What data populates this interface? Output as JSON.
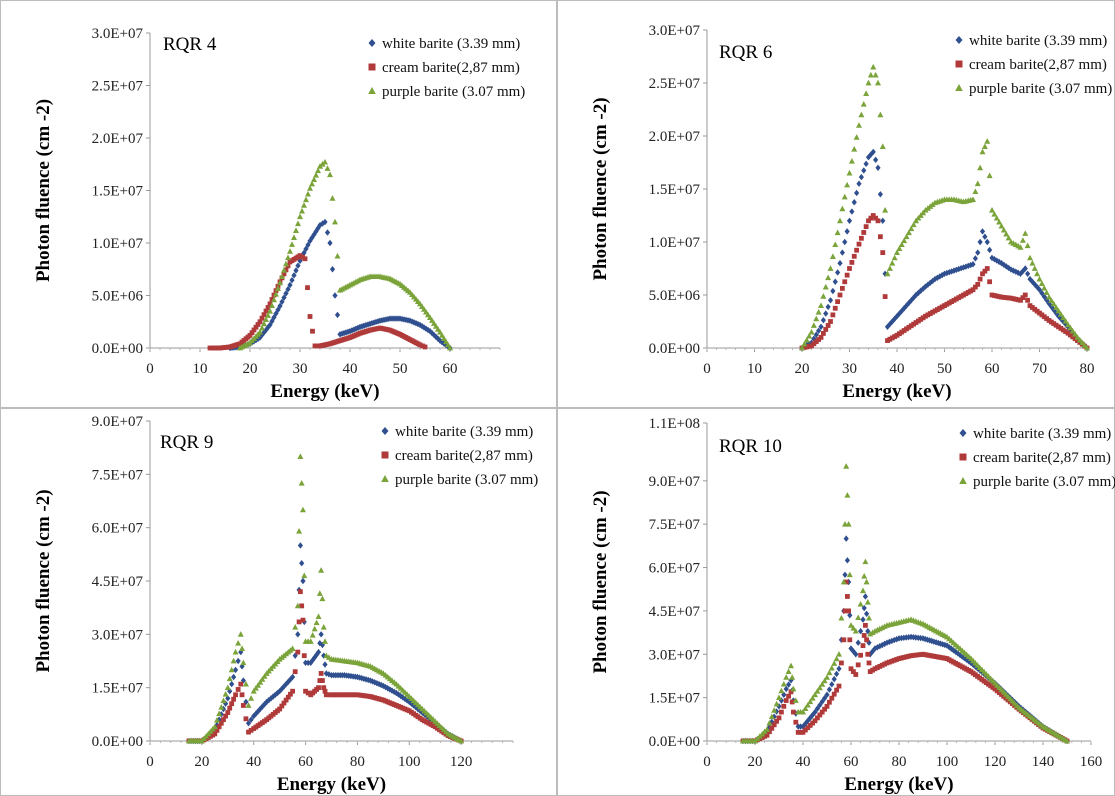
{
  "chart_data": [
    {
      "type": "scatter",
      "label": "RQR 4",
      "xlabel": "Energy (keV)",
      "ylabel": "Photon fluence (cm -2)",
      "xlim": [
        0,
        70
      ],
      "ylim": [
        0,
        30000000
      ],
      "xticks": [
        0,
        10,
        20,
        30,
        40,
        50,
        60
      ],
      "xtick_labels": [
        "0",
        "10",
        "20",
        "30",
        "40",
        "50",
        "60"
      ],
      "yticks": [
        0,
        5000000,
        10000000,
        15000000,
        20000000,
        25000000,
        30000000
      ],
      "ytick_labels": [
        "0.0E+00",
        "5.0E+06",
        "1.0E+07",
        "1.5E+07",
        "2.0E+07",
        "2.5E+07",
        "3.0E+07"
      ],
      "legend_position": "top-right",
      "series": [
        {
          "name": "white barite (3.39 mm)",
          "color": "#2f4f8f",
          "marker": "diamond",
          "x": [
            16,
            18,
            20,
            22,
            24,
            26,
            28,
            30,
            32,
            34,
            35,
            36,
            37,
            38,
            40,
            42,
            44,
            46,
            48,
            50,
            52,
            54,
            56,
            58,
            60
          ],
          "y": [
            0,
            100000,
            400000,
            1000000,
            2200000,
            4000000,
            6000000,
            8300000,
            10200000,
            11700000,
            12000000,
            10000000,
            5000000,
            1300000,
            1600000,
            2000000,
            2300000,
            2600000,
            2800000,
            2800000,
            2600000,
            2200000,
            1600000,
            700000,
            0
          ]
        },
        {
          "name": "cream barite(2,87 mm)",
          "color": "#b03a3a",
          "marker": "square",
          "x": [
            12,
            14,
            16,
            18,
            20,
            22,
            24,
            26,
            28,
            30,
            31,
            32,
            33,
            34,
            36,
            38,
            40,
            42,
            44,
            46,
            48,
            50,
            52,
            54,
            55
          ],
          "y": [
            0,
            0,
            100000,
            400000,
            1200000,
            2500000,
            4200000,
            6300000,
            8200000,
            8800000,
            8500000,
            3000000,
            200000,
            200000,
            400000,
            700000,
            1000000,
            1400000,
            1700000,
            1900000,
            1700000,
            1300000,
            800000,
            300000,
            100000
          ]
        },
        {
          "name": "purple barite (3.07 mm)",
          "color": "#7aa33a",
          "marker": "triangle",
          "x": [
            18,
            20,
            22,
            24,
            26,
            28,
            30,
            32,
            34,
            35,
            36,
            37,
            38,
            40,
            42,
            44,
            46,
            48,
            50,
            52,
            54,
            56,
            58,
            60
          ],
          "y": [
            0,
            500000,
            1500000,
            3500000,
            6200000,
            9200000,
            12500000,
            15200000,
            17300000,
            17700000,
            16500000,
            12000000,
            5500000,
            6000000,
            6500000,
            6800000,
            6800000,
            6600000,
            6100000,
            5300000,
            4200000,
            2900000,
            1500000,
            0
          ]
        }
      ]
    },
    {
      "type": "scatter",
      "label": "RQR 6",
      "xlabel": "Energy (keV)",
      "ylabel": "Photon fluence (cm -2)",
      "xlim": [
        0,
        80
      ],
      "ylim": [
        0,
        30000000
      ],
      "xticks": [
        0,
        10,
        20,
        30,
        40,
        50,
        60,
        70,
        80
      ],
      "xtick_labels": [
        "0",
        "10",
        "20",
        "30",
        "40",
        "50",
        "60",
        "70",
        "80"
      ],
      "yticks": [
        0,
        5000000,
        10000000,
        15000000,
        20000000,
        25000000,
        30000000
      ],
      "ytick_labels": [
        "0.0E+00",
        "5.0E+06",
        "1.0E+07",
        "1.5E+07",
        "2.0E+07",
        "2.5E+07",
        "3.0E+07"
      ],
      "legend_position": "top-right",
      "series": [
        {
          "name": "white barite (3.39 mm)",
          "color": "#2f4f8f",
          "marker": "diamond",
          "x": [
            20,
            22,
            24,
            26,
            28,
            30,
            32,
            34,
            35,
            36,
            37,
            38,
            40,
            42,
            44,
            46,
            48,
            50,
            52,
            54,
            56,
            57,
            58,
            59,
            60,
            62,
            64,
            66,
            67,
            68,
            70,
            72,
            74,
            76,
            78,
            80
          ],
          "y": [
            0,
            500000,
            2000000,
            4500000,
            8000000,
            12000000,
            15500000,
            18000000,
            18500000,
            17000000,
            12000000,
            2000000,
            3000000,
            4000000,
            5000000,
            5800000,
            6500000,
            7000000,
            7300000,
            7600000,
            7900000,
            9000000,
            11000000,
            10000000,
            8500000,
            8000000,
            7400000,
            7000000,
            7500000,
            6500000,
            5500000,
            4200000,
            3000000,
            2000000,
            900000,
            0
          ]
        },
        {
          "name": "cream barite(2,87 mm)",
          "color": "#b03a3a",
          "marker": "square",
          "x": [
            20,
            22,
            24,
            26,
            28,
            30,
            32,
            34,
            35,
            36,
            37,
            38,
            40,
            42,
            44,
            46,
            48,
            50,
            52,
            54,
            56,
            57,
            58,
            59,
            60,
            62,
            64,
            66,
            67,
            68,
            70,
            72,
            74,
            76,
            78,
            80
          ],
          "y": [
            0,
            200000,
            1000000,
            2500000,
            5000000,
            7500000,
            9800000,
            12000000,
            12500000,
            12000000,
            9000000,
            700000,
            1200000,
            1800000,
            2400000,
            3000000,
            3500000,
            4000000,
            4500000,
            5000000,
            5500000,
            6000000,
            7000000,
            7500000,
            5000000,
            4800000,
            4700000,
            4500000,
            5000000,
            4000000,
            3300000,
            2600000,
            2000000,
            1400000,
            700000,
            0
          ]
        },
        {
          "name": "purple barite (3.07 mm)",
          "color": "#7aa33a",
          "marker": "triangle",
          "x": [
            20,
            22,
            24,
            26,
            28,
            30,
            32,
            34,
            35,
            36,
            37,
            38,
            40,
            42,
            44,
            46,
            48,
            50,
            52,
            54,
            56,
            57,
            58,
            59,
            60,
            62,
            64,
            66,
            67,
            68,
            70,
            72,
            74,
            76,
            78,
            80
          ],
          "y": [
            0,
            1500000,
            4000000,
            7500000,
            12000000,
            16500000,
            21000000,
            25000000,
            26500000,
            25000000,
            19000000,
            7000000,
            9000000,
            10500000,
            12000000,
            13000000,
            13700000,
            14000000,
            14000000,
            13800000,
            14000000,
            15500000,
            18500000,
            19500000,
            13000000,
            11500000,
            10000000,
            9500000,
            10800000,
            8500000,
            6500000,
            4800000,
            3500000,
            2200000,
            1000000,
            0
          ]
        }
      ]
    },
    {
      "type": "scatter",
      "label": "RQR 9",
      "xlabel": "Energy (keV)",
      "ylabel": "Photon fluence (cm -2)",
      "xlim": [
        0,
        140
      ],
      "ylim": [
        0,
        90000000
      ],
      "xticks": [
        0,
        20,
        40,
        60,
        80,
        100,
        120
      ],
      "xtick_labels": [
        "0",
        "20",
        "40",
        "60",
        "80",
        "100",
        "120"
      ],
      "yticks": [
        0,
        15000000,
        30000000,
        45000000,
        60000000,
        75000000,
        90000000
      ],
      "ytick_labels": [
        "0.0E+00",
        "1.5E+07",
        "3.0E+07",
        "4.5E+07",
        "6.0E+07",
        "7.5E+07",
        "9.0E+07"
      ],
      "legend_position": "top-right",
      "series": [
        {
          "name": "white barite (3.39 mm)",
          "color": "#2f4f8f",
          "marker": "diamond",
          "x": [
            15,
            20,
            25,
            30,
            33,
            35,
            36,
            38,
            40,
            45,
            50,
            55,
            57,
            58,
            59,
            60,
            62,
            65,
            66,
            67,
            68,
            70,
            75,
            80,
            85,
            90,
            95,
            100,
            105,
            110,
            115,
            120
          ],
          "y": [
            0,
            0,
            3000000,
            12000000,
            20000000,
            25000000,
            17000000,
            5000000,
            7000000,
            11000000,
            14000000,
            18000000,
            30000000,
            55000000,
            45000000,
            22000000,
            22000000,
            25000000,
            30000000,
            24000000,
            19000000,
            18500000,
            18500000,
            18000000,
            17000000,
            15500000,
            13500000,
            11000000,
            8000000,
            5000000,
            2000000,
            0
          ]
        },
        {
          "name": "cream barite(2,87 mm)",
          "color": "#b03a3a",
          "marker": "square",
          "x": [
            15,
            20,
            25,
            30,
            33,
            35,
            36,
            38,
            40,
            45,
            50,
            55,
            57,
            58,
            59,
            60,
            62,
            65,
            66,
            67,
            68,
            70,
            75,
            80,
            85,
            90,
            95,
            100,
            105,
            110,
            115,
            120
          ],
          "y": [
            0,
            0,
            2000000,
            8000000,
            13000000,
            16000000,
            10000000,
            2500000,
            3500000,
            6000000,
            9000000,
            14000000,
            25000000,
            42000000,
            34000000,
            14000000,
            13000000,
            15000000,
            19000000,
            15000000,
            13000000,
            13000000,
            13000000,
            13000000,
            12500000,
            11500000,
            10000000,
            8500000,
            6000000,
            4000000,
            1500000,
            0
          ]
        },
        {
          "name": "purple barite (3.07 mm)",
          "color": "#7aa33a",
          "marker": "triangle",
          "x": [
            15,
            20,
            25,
            30,
            33,
            35,
            36,
            38,
            40,
            45,
            50,
            55,
            57,
            58,
            59,
            60,
            62,
            65,
            66,
            67,
            68,
            70,
            75,
            80,
            85,
            90,
            95,
            100,
            105,
            110,
            115,
            120
          ],
          "y": [
            0,
            0,
            4000000,
            15000000,
            25000000,
            30000000,
            22000000,
            10000000,
            14000000,
            19000000,
            23000000,
            26000000,
            38000000,
            80000000,
            65000000,
            28000000,
            28000000,
            35000000,
            48000000,
            32000000,
            24000000,
            23000000,
            22500000,
            22000000,
            21000000,
            19000000,
            16000000,
            12500000,
            9000000,
            5500000,
            2000000,
            0
          ]
        }
      ]
    },
    {
      "type": "scatter",
      "label": "RQR 10",
      "xlabel": "Energy (keV)",
      "ylabel": "Photon fluence (cm -2)",
      "xlim": [
        0,
        160
      ],
      "ylim": [
        0,
        110000000
      ],
      "xticks": [
        0,
        20,
        40,
        60,
        80,
        100,
        120,
        140,
        160
      ],
      "xtick_labels": [
        "0",
        "20",
        "40",
        "60",
        "80",
        "100",
        "120",
        "140",
        "160"
      ],
      "yticks": [
        0,
        15000000,
        30000000,
        45000000,
        60000000,
        75000000,
        90000000,
        110000000
      ],
      "ytick_labels": [
        "0.0E+00",
        "1.5E+07",
        "3.0E+07",
        "4.5E+07",
        "6.0E+07",
        "7.5E+07",
        "9.0E+07",
        "1.1E+08"
      ],
      "legend_position": "top-right",
      "series": [
        {
          "name": "white barite (3.39 mm)",
          "color": "#2f4f8f",
          "marker": "diamond",
          "x": [
            15,
            20,
            25,
            30,
            33,
            35,
            36,
            38,
            40,
            45,
            50,
            55,
            57,
            58,
            59,
            60,
            62,
            65,
            66,
            67,
            68,
            70,
            75,
            80,
            85,
            90,
            100,
            110,
            120,
            130,
            140,
            150
          ],
          "y": [
            0,
            0,
            3000000,
            12000000,
            18000000,
            21000000,
            14000000,
            5000000,
            5000000,
            10000000,
            16000000,
            25000000,
            45000000,
            70000000,
            55000000,
            32000000,
            30000000,
            42000000,
            50000000,
            38000000,
            30000000,
            32000000,
            34000000,
            35500000,
            36000000,
            35500000,
            33000000,
            27000000,
            20000000,
            12000000,
            5000000,
            0
          ]
        },
        {
          "name": "cream barite(2,87 mm)",
          "color": "#b03a3a",
          "marker": "square",
          "x": [
            15,
            20,
            25,
            30,
            33,
            35,
            36,
            38,
            40,
            45,
            50,
            55,
            57,
            58,
            59,
            60,
            62,
            65,
            66,
            67,
            68,
            70,
            75,
            80,
            85,
            90,
            100,
            110,
            120,
            130,
            140,
            150
          ],
          "y": [
            0,
            0,
            2000000,
            8000000,
            14000000,
            17000000,
            10000000,
            3000000,
            3000000,
            7000000,
            12000000,
            19000000,
            35000000,
            55000000,
            45000000,
            25000000,
            23000000,
            33000000,
            40000000,
            30000000,
            24000000,
            25000000,
            27000000,
            28500000,
            29500000,
            30000000,
            28500000,
            24000000,
            18000000,
            11000000,
            4500000,
            0
          ]
        },
        {
          "name": "purple barite (3.07 mm)",
          "color": "#7aa33a",
          "marker": "triangle",
          "x": [
            15,
            20,
            25,
            30,
            33,
            35,
            36,
            38,
            40,
            45,
            50,
            55,
            57,
            58,
            59,
            60,
            62,
            65,
            66,
            67,
            68,
            70,
            75,
            80,
            85,
            90,
            100,
            110,
            120,
            130,
            140,
            150
          ],
          "y": [
            0,
            0,
            4000000,
            15000000,
            22000000,
            26000000,
            18000000,
            10000000,
            10000000,
            16000000,
            22000000,
            30000000,
            55000000,
            95000000,
            75000000,
            40000000,
            38000000,
            52000000,
            62000000,
            48000000,
            37000000,
            38000000,
            40000000,
            41000000,
            42000000,
            40500000,
            36000000,
            28500000,
            20000000,
            11500000,
            5000000,
            0
          ]
        }
      ]
    }
  ]
}
